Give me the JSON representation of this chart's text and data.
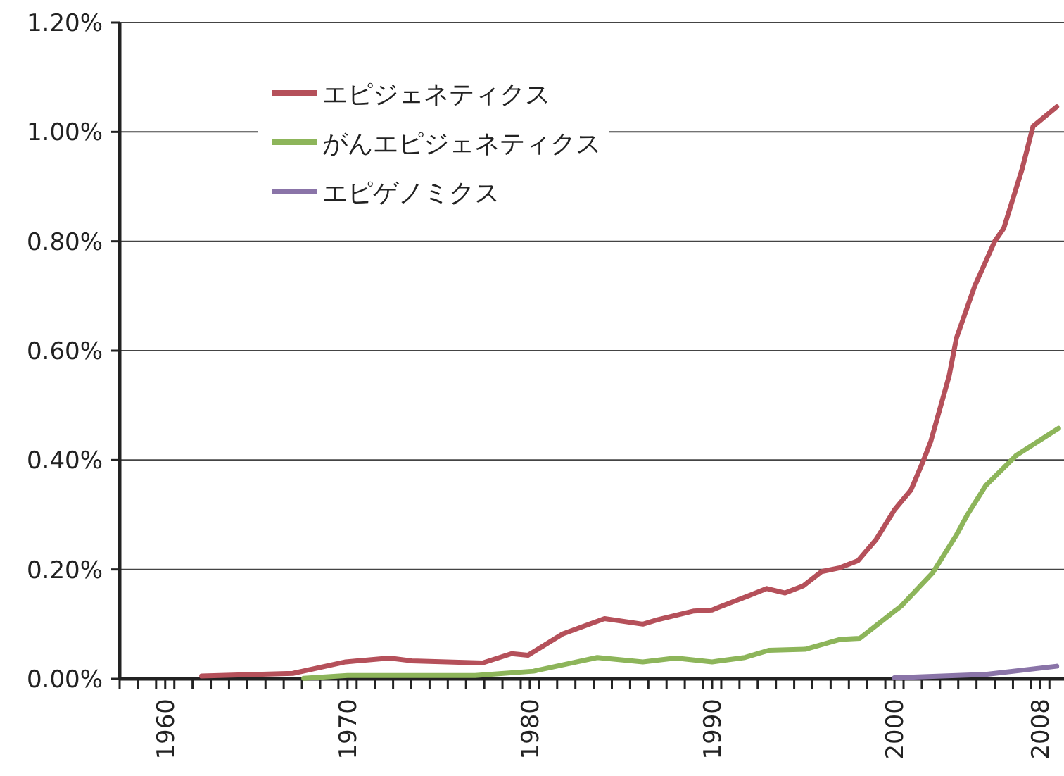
{
  "chart_data": {
    "type": "line",
    "xlim": [
      1957.5,
      2009.3
    ],
    "ylim": [
      0,
      1.2
    ],
    "yticks": [
      {
        "value": 0,
        "label": "0.00%"
      },
      {
        "value": 0.2,
        "label": "0.20%"
      },
      {
        "value": 0.4,
        "label": "0.40%"
      },
      {
        "value": 0.6,
        "label": "0.60%"
      },
      {
        "value": 0.8,
        "label": "0.80%"
      },
      {
        "value": 1.0,
        "label": "1.00%"
      },
      {
        "value": 1.2,
        "label": "1.20%"
      }
    ],
    "xticks": [
      1960,
      1970,
      1980,
      1990,
      2000,
      2008,
      {
        "value": 1957.5,
        "label": null
      },
      {
        "value": 1958.5,
        "label": null
      },
      {
        "value": 1959.5,
        "label": null
      },
      {
        "value": 1960.5,
        "label": null
      },
      {
        "value": 1961.5,
        "label": null
      },
      {
        "value": 1962.5,
        "label": null
      },
      {
        "value": 1963.5,
        "label": null
      },
      {
        "value": 1964.5,
        "label": null
      },
      {
        "value": 1965.5,
        "label": null
      },
      {
        "value": 1966.5,
        "label": null
      },
      {
        "value": 1967.5,
        "label": null
      },
      {
        "value": 1968.5,
        "label": null
      },
      {
        "value": 1969.5,
        "label": null
      },
      {
        "value": 1970.5,
        "label": null
      },
      {
        "value": 1971.5,
        "label": null
      },
      {
        "value": 1972.5,
        "label": null
      },
      {
        "value": 1973.5,
        "label": null
      },
      {
        "value": 1974.5,
        "label": null
      },
      {
        "value": 1975.5,
        "label": null
      },
      {
        "value": 1976.5,
        "label": null
      },
      {
        "value": 1977.5,
        "label": null
      },
      {
        "value": 1978.5,
        "label": null
      },
      {
        "value": 1979.5,
        "label": null
      },
      {
        "value": 1980.5,
        "label": null
      },
      {
        "value": 1981.5,
        "label": null
      },
      {
        "value": 1982.5,
        "label": null
      },
      {
        "value": 1983.5,
        "label": null
      },
      {
        "value": 1984.5,
        "label": null
      },
      {
        "value": 1985.5,
        "label": null
      },
      {
        "value": 1986.5,
        "label": null
      },
      {
        "value": 1987.5,
        "label": null
      },
      {
        "value": 1988.5,
        "label": null
      },
      {
        "value": 1989.5,
        "label": null
      },
      {
        "value": 1990.5,
        "label": null
      },
      {
        "value": 1991.5,
        "label": null
      },
      {
        "value": 1992.5,
        "label": null
      },
      {
        "value": 1993.5,
        "label": null
      },
      {
        "value": 1994.5,
        "label": null
      },
      {
        "value": 1995.5,
        "label": null
      },
      {
        "value": 1996.5,
        "label": null
      },
      {
        "value": 1997.5,
        "label": null
      },
      {
        "value": 1998.5,
        "label": null
      },
      {
        "value": 1999.5,
        "label": null
      },
      {
        "value": 2000.5,
        "label": null
      },
      {
        "value": 2001.5,
        "label": null
      },
      {
        "value": 2002.5,
        "label": null
      },
      {
        "value": 2003.5,
        "label": null
      },
      {
        "value": 2004.5,
        "label": null
      },
      {
        "value": 2005.5,
        "label": null
      },
      {
        "value": 2006.5,
        "label": null
      },
      {
        "value": 2007.5,
        "label": null
      },
      {
        "value": 2008.5,
        "label": null
      }
    ],
    "grid": "y",
    "legend": "top left",
    "series": [
      {
        "name": "エピジェネティクス",
        "color": "#b5505a",
        "x": [
          1962,
          1967,
          1969.9,
          1972.3,
          1973.5,
          1977.4,
          1979,
          1979.9,
          1981.8,
          1984.1,
          1986.2,
          1987,
          1989,
          1990,
          1991,
          1992,
          1993,
          1994,
          1995,
          1996,
          1997,
          1998,
          1999,
          2000,
          2000.9,
          2001.6,
          2002,
          2003,
          2003.4,
          2004.4,
          2005.5,
          2006,
          2007,
          2007.6,
          2008.9
        ],
        "values": [
          0.005,
          0.01,
          0.031,
          0.038,
          0.033,
          0.029,
          0.046,
          0.043,
          0.082,
          0.11,
          0.1,
          0.108,
          0.124,
          0.126,
          0.139,
          0.152,
          0.165,
          0.157,
          0.17,
          0.196,
          0.203,
          0.216,
          0.255,
          0.309,
          0.345,
          0.4,
          0.435,
          0.554,
          0.623,
          0.718,
          0.8,
          0.824,
          0.932,
          1.01,
          1.046
        ]
      },
      {
        "name": "がんエピジェネティクス",
        "color": "#8db55a",
        "x": [
          1967.6,
          1970,
          1977,
          1980.2,
          1983.7,
          1986.2,
          1988,
          1990,
          1991.8,
          1993.1,
          1995.1,
          1997,
          1998.1,
          2000.4,
          2002.1,
          2003.4,
          2004,
          2005,
          2006.7,
          2009
        ],
        "values": [
          0.001,
          0.006,
          0.006,
          0.014,
          0.039,
          0.031,
          0.038,
          0.031,
          0.039,
          0.052,
          0.054,
          0.072,
          0.074,
          0.134,
          0.194,
          0.263,
          0.3,
          0.353,
          0.409,
          0.458
        ]
      },
      {
        "name": "エピゲノミクス",
        "color": "#8a74a8",
        "x": [
          2000,
          2005,
          2008.9
        ],
        "values": [
          0.002,
          0.008,
          0.023
        ]
      }
    ]
  }
}
